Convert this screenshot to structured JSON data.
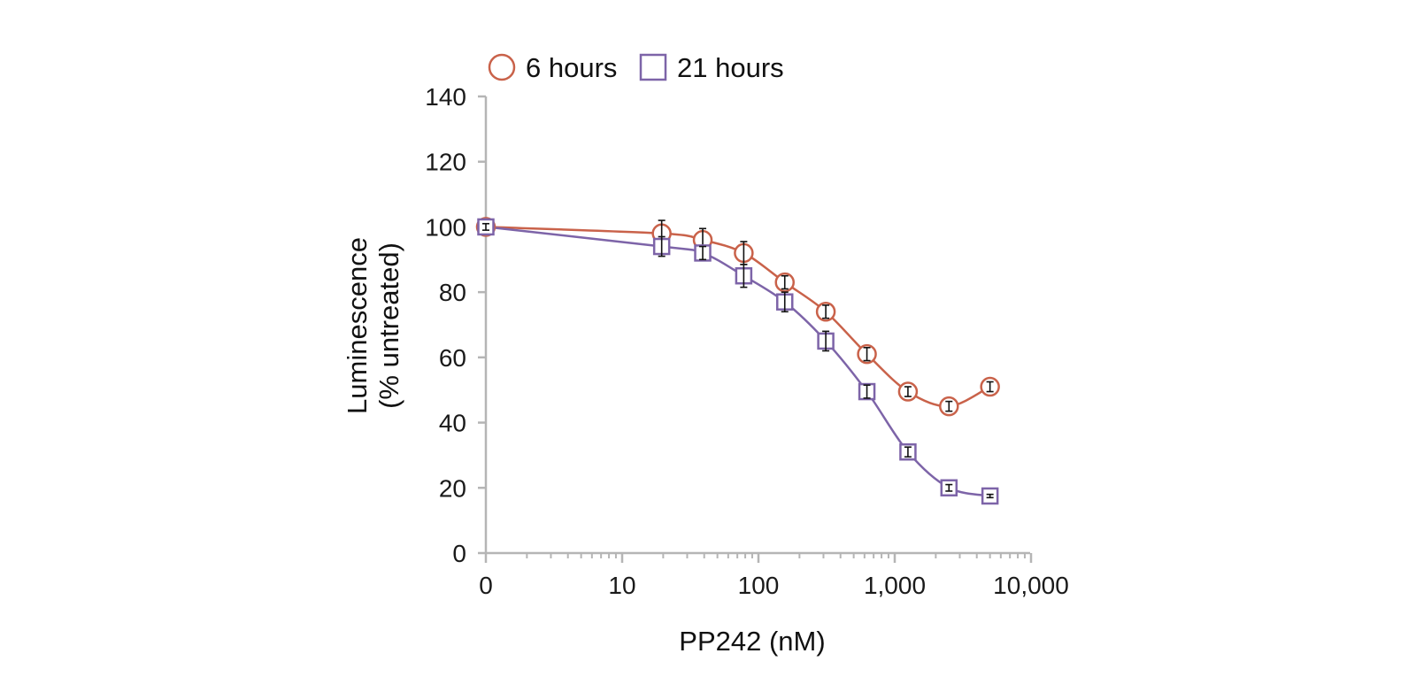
{
  "chart_data": {
    "type": "line",
    "xlabel": "PP242 (nM)",
    "ylabel_line1": "Luminescence",
    "ylabel_line2": "(% untreated)",
    "x_scale": "log",
    "x_ticks": [
      "0",
      "10",
      "100",
      "1,000",
      "10,000"
    ],
    "y_ticks": [
      "0",
      "20",
      "40",
      "60",
      "80",
      "100",
      "120",
      "140"
    ],
    "ylim": [
      0,
      140
    ],
    "grid": false,
    "legend_position": "top",
    "series": [
      {
        "name": "6 hours",
        "marker": "circle",
        "color": "#c9624a",
        "points": [
          {
            "x": 0,
            "y": 100,
            "err": 1.5
          },
          {
            "x": 19.5,
            "y": 98,
            "err": 4
          },
          {
            "x": 39,
            "y": 96,
            "err": 3.5
          },
          {
            "x": 78,
            "y": 92,
            "err": 3.5
          },
          {
            "x": 156,
            "y": 83,
            "err": 2
          },
          {
            "x": 312,
            "y": 74,
            "err": 2
          },
          {
            "x": 625,
            "y": 61,
            "err": 2
          },
          {
            "x": 1250,
            "y": 49.5,
            "err": 1.5
          },
          {
            "x": 2500,
            "y": 45,
            "err": 1.5
          },
          {
            "x": 5000,
            "y": 51,
            "err": 1.5
          }
        ]
      },
      {
        "name": "21 hours",
        "marker": "square",
        "color": "#7d64a8",
        "points": [
          {
            "x": 0,
            "y": 100,
            "err": 1
          },
          {
            "x": 19.5,
            "y": 94,
            "err": 3
          },
          {
            "x": 39,
            "y": 92,
            "err": 2
          },
          {
            "x": 78,
            "y": 85,
            "err": 3.5
          },
          {
            "x": 156,
            "y": 77,
            "err": 3
          },
          {
            "x": 312,
            "y": 65,
            "err": 3
          },
          {
            "x": 625,
            "y": 49.5,
            "err": 2
          },
          {
            "x": 1250,
            "y": 31,
            "err": 1.5
          },
          {
            "x": 2500,
            "y": 20,
            "err": 1
          },
          {
            "x": 5000,
            "y": 17.5,
            "err": 0.5
          }
        ]
      }
    ]
  }
}
